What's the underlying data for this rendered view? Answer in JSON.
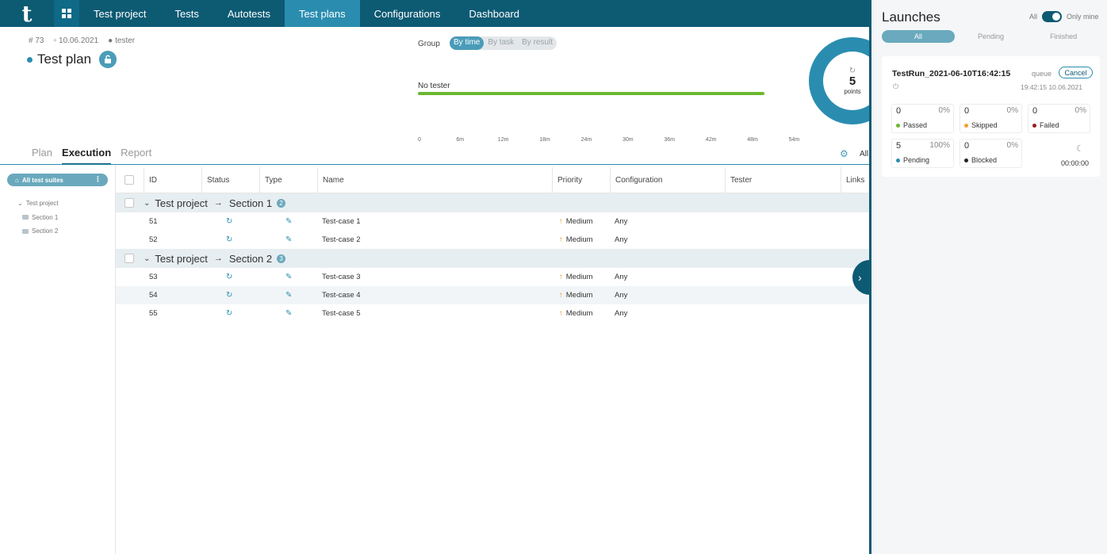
{
  "nav": {
    "logo": "t",
    "items": [
      {
        "label": "Test project",
        "active": false
      },
      {
        "label": "Tests",
        "active": false
      },
      {
        "label": "Autotests",
        "active": false
      },
      {
        "label": "Test plans",
        "active": true
      },
      {
        "label": "Configurations",
        "active": false
      },
      {
        "label": "Dashboard",
        "active": false
      }
    ]
  },
  "plan": {
    "id": "# 73",
    "date": "10.06.2021",
    "author": "tester",
    "title": "Test plan"
  },
  "timeline": {
    "group_label": "Group",
    "group_options": [
      "By time",
      "By task",
      "By result"
    ],
    "selected": "By time",
    "tester": "No tester",
    "ticks": [
      "0",
      "6m",
      "12m",
      "18m",
      "24m",
      "30m",
      "36m",
      "42m",
      "48m",
      "54m"
    ]
  },
  "donut": {
    "value": "5",
    "unit": "points",
    "color": "#2a8db0"
  },
  "tabs": [
    {
      "label": "Plan",
      "active": false
    },
    {
      "label": "Execution",
      "active": true
    },
    {
      "label": "Report",
      "active": false
    }
  ],
  "filter_label": "All",
  "sidebar": {
    "suites_button": "All test suites",
    "tree": {
      "root": "Test project",
      "children": [
        "Section 1",
        "Section 2"
      ]
    }
  },
  "table": {
    "columns": [
      "ID",
      "Status",
      "Type",
      "Name",
      "Priority",
      "Configuration",
      "Tester",
      "Links"
    ],
    "groups": [
      {
        "project": "Test project",
        "section": "Section 1",
        "count": "2",
        "rows": [
          {
            "id": "51",
            "name": "Test-case 1",
            "priority": "Medium",
            "config": "Any"
          },
          {
            "id": "52",
            "name": "Test-case 2",
            "priority": "Medium",
            "config": "Any"
          }
        ]
      },
      {
        "project": "Test project",
        "section": "Section 2",
        "count": "3",
        "rows": [
          {
            "id": "53",
            "name": "Test-case 3",
            "priority": "Medium",
            "config": "Any"
          },
          {
            "id": "54",
            "name": "Test-case 4",
            "priority": "Medium",
            "config": "Any"
          },
          {
            "id": "55",
            "name": "Test-case 5",
            "priority": "Medium",
            "config": "Any"
          }
        ]
      }
    ]
  },
  "launches": {
    "title": "Launches",
    "toggle_left": "All",
    "toggle_right": "Only mine",
    "filters": [
      "All",
      "Pending",
      "Finished"
    ],
    "active_filter": "All",
    "run": {
      "name": "TestRun_2021-06-10T16:42:15",
      "state": "queue",
      "cancel_label": "Cancel",
      "time": "19:42:15 10.06.2021",
      "elapsed": "00:00:00",
      "stats": [
        {
          "num": "0",
          "pct": "0%",
          "label": "Passed",
          "color": "#6ab82e"
        },
        {
          "num": "0",
          "pct": "0%",
          "label": "Skipped",
          "color": "#f0a030"
        },
        {
          "num": "0",
          "pct": "0%",
          "label": "Failed",
          "color": "#9a1b1b"
        },
        {
          "num": "5",
          "pct": "100%",
          "label": "Pending",
          "color": "#2a8db0"
        },
        {
          "num": "0",
          "pct": "0%",
          "label": "Blocked",
          "color": "#222222"
        }
      ]
    }
  }
}
